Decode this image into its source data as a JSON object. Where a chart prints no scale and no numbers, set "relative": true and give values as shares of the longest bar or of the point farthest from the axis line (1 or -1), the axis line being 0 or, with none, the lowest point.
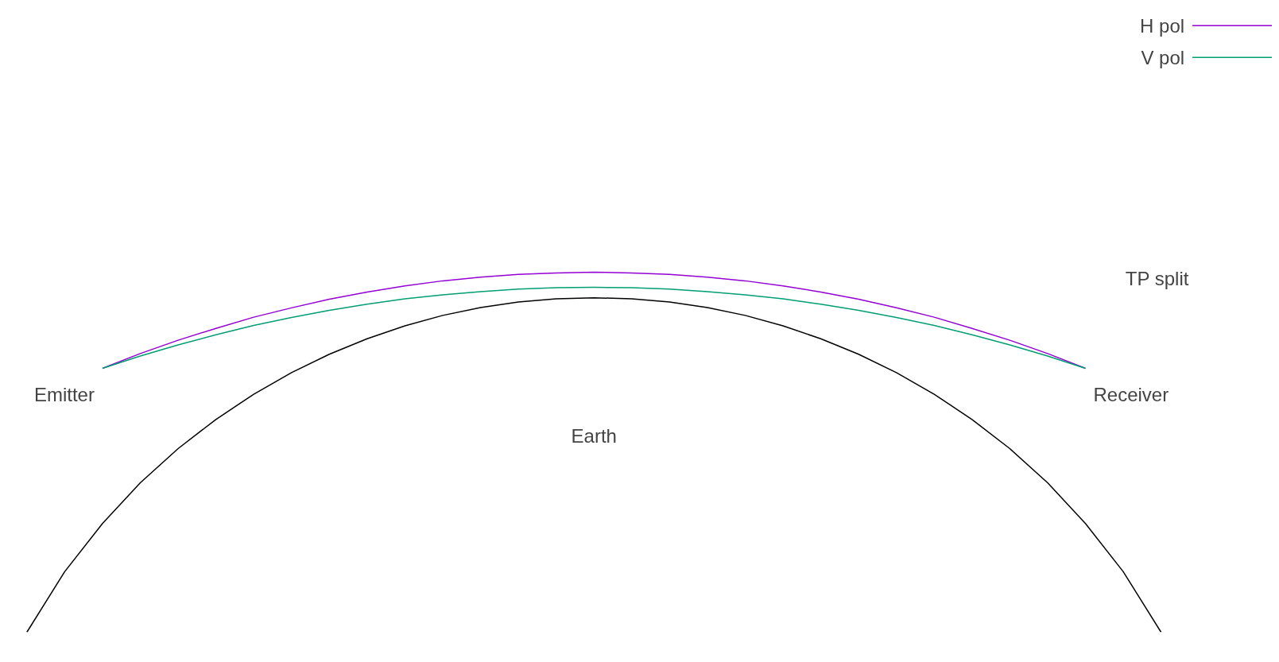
{
  "chart_data": {
    "type": "line",
    "relative": true,
    "categories": [
      null,
      null,
      null,
      null,
      null,
      null,
      null,
      null,
      null,
      null,
      null,
      null,
      null,
      null,
      null,
      null,
      null,
      null,
      null,
      null,
      null,
      null,
      null,
      null,
      null,
      null,
      null,
      null,
      null,
      null,
      null
    ],
    "series": [
      {
        "name": "H pol",
        "color": "#9400d3",
        "values": [
          null,
          null,
          0.733,
          0.774,
          0.811,
          0.844,
          0.875,
          0.901,
          0.925,
          0.945,
          0.962,
          0.976,
          0.986,
          0.994,
          0.998,
          1.0,
          0.998,
          0.994,
          0.986,
          0.976,
          0.962,
          0.945,
          0.925,
          0.901,
          0.875,
          0.844,
          0.811,
          0.774,
          0.733,
          null,
          null
        ]
      },
      {
        "name": "V pol",
        "color": "#009e73",
        "values": [
          null,
          null,
          0.733,
          0.767,
          0.798,
          0.826,
          0.852,
          0.874,
          0.894,
          0.911,
          0.926,
          0.937,
          0.946,
          0.953,
          0.957,
          0.958,
          0.957,
          0.953,
          0.946,
          0.937,
          0.926,
          0.911,
          0.894,
          0.874,
          0.852,
          0.826,
          0.798,
          0.767,
          0.733,
          null,
          null
        ]
      },
      {
        "color": "#000000",
        "values": [
          0,
          0.168,
          0.302,
          0.415,
          0.51,
          0.591,
          0.661,
          0.721,
          0.772,
          0.815,
          0.851,
          0.88,
          0.902,
          0.917,
          0.926,
          0.929,
          0.926,
          0.917,
          0.902,
          0.88,
          0.851,
          0.815,
          0.772,
          0.721,
          0.661,
          0.591,
          0.51,
          0.415,
          0.302,
          0.168,
          0
        ]
      }
    ],
    "annotations": [
      "Emitter",
      "Receiver",
      "Earth",
      "TP split"
    ],
    "legend": "top right",
    "grid": false
  }
}
